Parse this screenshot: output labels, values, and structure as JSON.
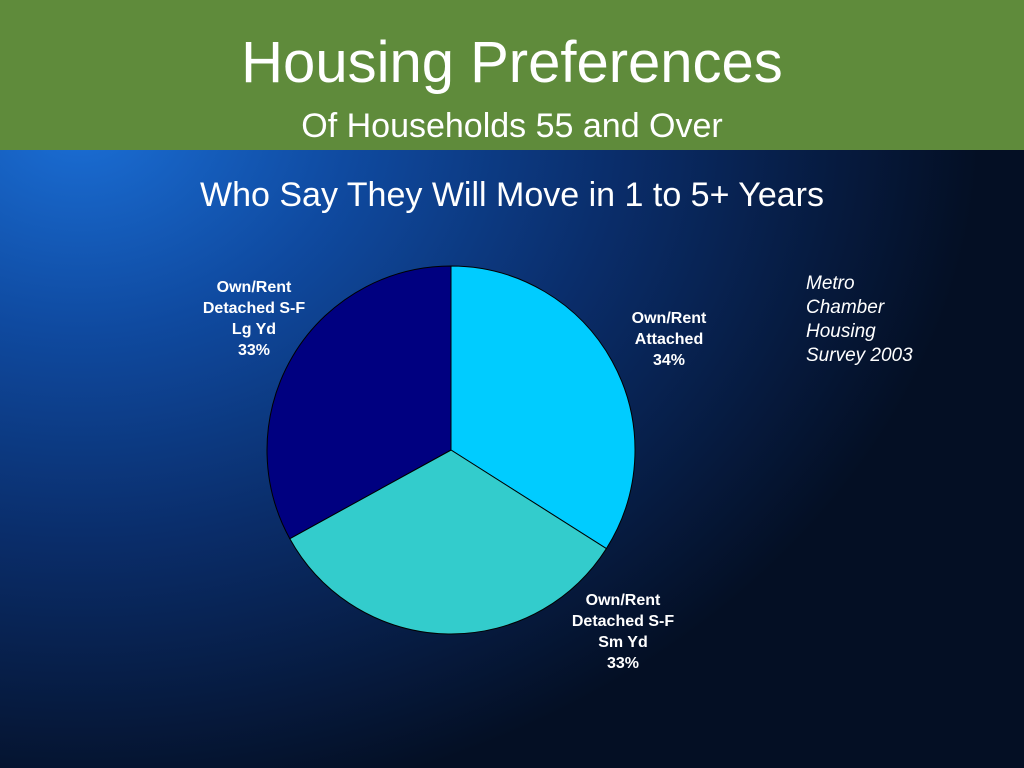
{
  "chart_data": {
    "type": "pie",
    "title": "Housing Preferences",
    "subtitle": "Of Households 55 and Over",
    "chart_title": "Who Say They Will Move in 1 to 5+ Years",
    "annotation": "Metro Chamber Housing Survey 2003",
    "categories": [
      "Own/Rent Attached",
      "Own/Rent Detached S-F Sm Yd",
      "Own/Rent Detached S-F Lg Yd"
    ],
    "values": [
      34,
      33,
      33
    ],
    "value_labels": [
      "34%",
      "33%",
      "33%"
    ],
    "colors": [
      "#00ccff",
      "#33cccc",
      "#000080"
    ]
  }
}
